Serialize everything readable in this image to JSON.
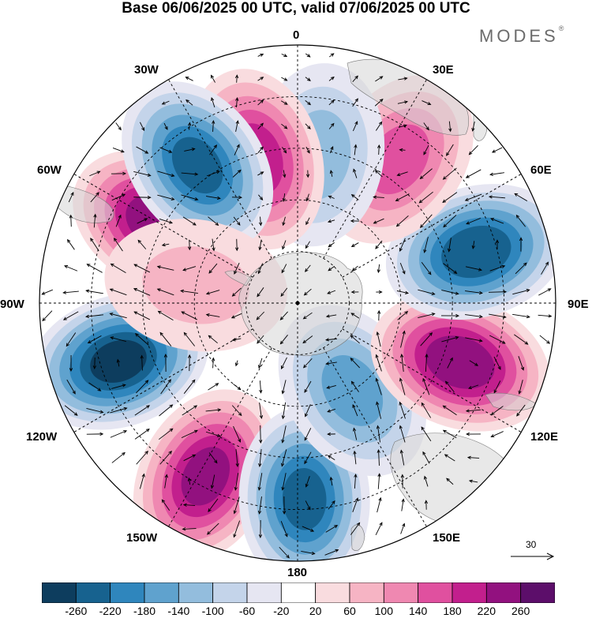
{
  "title": "Base 06/06/2025 00 UTC, valid 07/06/2025 00 UTC",
  "brand": {
    "name": "MODES",
    "mark": "®"
  },
  "longitude_labels": [
    "0",
    "30E",
    "60E",
    "90E",
    "120E",
    "150E",
    "180",
    "150W",
    "120W",
    "90W",
    "60W",
    "30W"
  ],
  "reference_vector": {
    "label": "30"
  },
  "colorbar": {
    "colors": [
      "#0d3d5e",
      "#17628f",
      "#2f86bd",
      "#5fa2ce",
      "#93bddd",
      "#c4d4ea",
      "#e6e6f2",
      "#ffffff",
      "#f9dcdf",
      "#f6b4c4",
      "#ef88b1",
      "#e0509f",
      "#c21f8d",
      "#92117f",
      "#5c0e6a"
    ],
    "labels": [
      "-260",
      "-220",
      "-180",
      "-140",
      "-100",
      "-60",
      "-20",
      "20",
      "60",
      "100",
      "140",
      "180",
      "220",
      "260"
    ]
  },
  "anomaly_centers": [
    {
      "lon_deg": -60,
      "colat": 0.62,
      "value": 250
    },
    {
      "lon_deg": -108,
      "colat": 0.73,
      "value": -270
    },
    {
      "lon_deg": -152,
      "colat": 0.76,
      "value": 230
    },
    {
      "lon_deg": 178,
      "colat": 0.76,
      "value": -230
    },
    {
      "lon_deg": 148,
      "colat": 0.4,
      "value": -150
    },
    {
      "lon_deg": 110,
      "colat": 0.67,
      "value": 250
    },
    {
      "lon_deg": 74,
      "colat": 0.72,
      "value": -250
    },
    {
      "lon_deg": 35,
      "colat": 0.68,
      "value": 150
    },
    {
      "lon_deg": 8,
      "colat": 0.58,
      "value": -110
    },
    {
      "lon_deg": -16,
      "colat": 0.58,
      "value": 200
    },
    {
      "lon_deg": -36,
      "colat": 0.66,
      "value": -230
    },
    {
      "lon_deg": -80,
      "colat": 0.4,
      "value": 60
    }
  ]
}
